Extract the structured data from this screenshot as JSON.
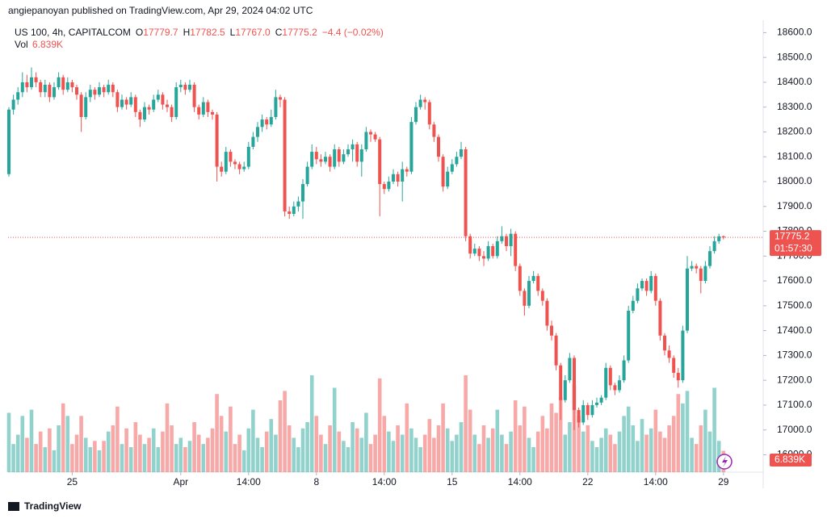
{
  "header": {
    "publisher": "angiepanoyan published on TradingView.com, Apr 29, 2024 04:02 UTC",
    "symbol": "US 100, 4h, CAPITALCOM",
    "open_key": "O",
    "open": "17779.7",
    "high_key": "H",
    "high": "17782.5",
    "low_key": "L",
    "low": "17767.0",
    "close_key": "C",
    "close": "17775.2",
    "change": "−4.4 (−0.02%)",
    "vol_key": "Vol"
  },
  "footer": {
    "brand": "TradingView"
  },
  "chart_data": {
    "type": "candlestick",
    "up_color": "#26a69a",
    "down_color": "#ef5350",
    "volume_label": "6.839K",
    "countdown": "01:57:30",
    "ylim": [
      16830,
      18650
    ],
    "yticks": [
      {
        "value": 16900,
        "label": "16900.0"
      },
      {
        "value": 17000,
        "label": "17000.0"
      },
      {
        "value": 17100,
        "label": "17100.0"
      },
      {
        "value": 17200,
        "label": "17200.0"
      },
      {
        "value": 17300,
        "label": "17300.0"
      },
      {
        "value": 17400,
        "label": "17400.0"
      },
      {
        "value": 17500,
        "label": "17500.0"
      },
      {
        "value": 17600,
        "label": "17600.0"
      },
      {
        "value": 17700,
        "label": "17700.0"
      },
      {
        "value": 17800,
        "label": "17800.0"
      },
      {
        "value": 17900,
        "label": "17900.0"
      },
      {
        "value": 18000,
        "label": "18000.0"
      },
      {
        "value": 18100,
        "label": "18100.0"
      },
      {
        "value": 18200,
        "label": "18200.0"
      },
      {
        "value": 18300,
        "label": "18300.0"
      },
      {
        "value": 18400,
        "label": "18400.0"
      },
      {
        "value": 18500,
        "label": "18500.0"
      },
      {
        "value": 18600,
        "label": "18600.0"
      }
    ],
    "xticks": [
      {
        "value": 14,
        "label": "25"
      },
      {
        "value": 38,
        "label": "Apr"
      },
      {
        "value": 53,
        "label": "14:00"
      },
      {
        "value": 68,
        "label": "8"
      },
      {
        "value": 83,
        "label": "14:00"
      },
      {
        "value": 98,
        "label": "15"
      },
      {
        "value": 113,
        "label": "14:00"
      },
      {
        "value": 128,
        "label": "22"
      },
      {
        "value": 143,
        "label": "14:00"
      },
      {
        "value": 158,
        "label": "29"
      }
    ],
    "candles": [
      [
        18030,
        18300,
        18020,
        18290,
        19
      ],
      [
        18290,
        18350,
        18270,
        18330,
        9
      ],
      [
        18330,
        18380,
        18310,
        18360,
        12
      ],
      [
        18360,
        18440,
        18340,
        18400,
        18
      ],
      [
        18400,
        18430,
        18360,
        18380,
        11
      ],
      [
        18380,
        18460,
        18370,
        18420,
        20
      ],
      [
        18420,
        18440,
        18380,
        18400,
        9
      ],
      [
        18400,
        18410,
        18340,
        18360,
        13
      ],
      [
        18360,
        18410,
        18340,
        18390,
        8
      ],
      [
        18390,
        18400,
        18320,
        18340,
        14
      ],
      [
        18340,
        18400,
        18330,
        18380,
        7
      ],
      [
        18380,
        18440,
        18370,
        18420,
        15
      ],
      [
        18420,
        18430,
        18350,
        18370,
        22
      ],
      [
        18370,
        18420,
        18360,
        18400,
        18
      ],
      [
        18400,
        18410,
        18360,
        18380,
        9
      ],
      [
        18380,
        18390,
        18330,
        18350,
        12
      ],
      [
        18350,
        18360,
        18200,
        18260,
        18
      ],
      [
        18260,
        18360,
        18250,
        18340,
        11
      ],
      [
        18340,
        18390,
        18320,
        18370,
        8
      ],
      [
        18370,
        18380,
        18330,
        18350,
        10
      ],
      [
        18350,
        18400,
        18340,
        18380,
        7
      ],
      [
        18380,
        18390,
        18340,
        18360,
        10
      ],
      [
        18360,
        18410,
        18350,
        18390,
        13
      ],
      [
        18390,
        18400,
        18340,
        18360,
        15
      ],
      [
        18360,
        18370,
        18280,
        18300,
        21
      ],
      [
        18300,
        18350,
        18290,
        18330,
        9
      ],
      [
        18330,
        18340,
        18290,
        18310,
        14
      ],
      [
        18310,
        18360,
        18300,
        18340,
        8
      ],
      [
        18340,
        18350,
        18260,
        18280,
        16
      ],
      [
        18280,
        18290,
        18220,
        18250,
        12
      ],
      [
        18250,
        18320,
        18240,
        18300,
        9
      ],
      [
        18300,
        18310,
        18270,
        18290,
        11
      ],
      [
        18290,
        18350,
        18280,
        18330,
        14
      ],
      [
        18330,
        18370,
        18320,
        18350,
        8
      ],
      [
        18350,
        18360,
        18290,
        18310,
        13
      ],
      [
        18310,
        18330,
        18280,
        18300,
        22
      ],
      [
        18300,
        18310,
        18240,
        18260,
        15
      ],
      [
        18260,
        18400,
        18250,
        18380,
        9
      ],
      [
        18380,
        18410,
        18360,
        18390,
        11
      ],
      [
        18390,
        18400,
        18350,
        18370,
        8
      ],
      [
        18370,
        18410,
        18360,
        18390,
        10
      ],
      [
        18390,
        18400,
        18280,
        18300,
        16
      ],
      [
        18300,
        18310,
        18250,
        18270,
        12
      ],
      [
        18270,
        18340,
        18260,
        18320,
        9
      ],
      [
        18320,
        18330,
        18260,
        18280,
        11
      ],
      [
        18280,
        18290,
        18250,
        18270,
        14
      ],
      [
        18270,
        18280,
        18000,
        18060,
        25
      ],
      [
        18060,
        18080,
        18020,
        18040,
        18
      ],
      [
        18040,
        18140,
        18030,
        18120,
        13
      ],
      [
        18120,
        18130,
        18060,
        18080,
        21
      ],
      [
        18080,
        18090,
        18050,
        18070,
        9
      ],
      [
        18070,
        18080,
        18030,
        18050,
        12
      ],
      [
        18050,
        18080,
        18040,
        18060,
        7
      ],
      [
        18060,
        18160,
        18050,
        18140,
        14
      ],
      [
        18140,
        18200,
        18130,
        18180,
        20
      ],
      [
        18180,
        18240,
        18160,
        18220,
        11
      ],
      [
        18220,
        18270,
        18200,
        18250,
        8
      ],
      [
        18250,
        18260,
        18210,
        18230,
        13
      ],
      [
        18230,
        18290,
        18220,
        18260,
        17
      ],
      [
        18260,
        18370,
        18250,
        18340,
        12
      ],
      [
        18340,
        18350,
        18300,
        18330,
        23
      ],
      [
        18330,
        18340,
        17860,
        17880,
        26
      ],
      [
        17880,
        17900,
        17850,
        17870,
        15
      ],
      [
        17870,
        17920,
        17860,
        17900,
        11
      ],
      [
        17900,
        17940,
        17880,
        17920,
        8
      ],
      [
        17920,
        18010,
        17850,
        17990,
        14
      ],
      [
        17990,
        18080,
        17980,
        18060,
        16
      ],
      [
        18060,
        18150,
        18050,
        18120,
        31
      ],
      [
        18120,
        18140,
        18070,
        18090,
        18
      ],
      [
        18090,
        18110,
        18060,
        18080,
        12
      ],
      [
        18080,
        18120,
        18070,
        18100,
        9
      ],
      [
        18100,
        18110,
        18040,
        18060,
        15
      ],
      [
        18060,
        18150,
        18050,
        18130,
        27
      ],
      [
        18130,
        18140,
        18060,
        18080,
        13
      ],
      [
        18080,
        18130,
        18070,
        18110,
        10
      ],
      [
        18110,
        18150,
        18100,
        18130,
        8
      ],
      [
        18130,
        18170,
        18080,
        18150,
        16
      ],
      [
        18150,
        18160,
        18060,
        18080,
        14
      ],
      [
        18080,
        18150,
        18020,
        18130,
        11
      ],
      [
        18130,
        18220,
        18120,
        18200,
        19
      ],
      [
        18200,
        18210,
        18160,
        18190,
        9
      ],
      [
        18190,
        18200,
        18160,
        18170,
        12
      ],
      [
        18170,
        18180,
        17860,
        17990,
        30
      ],
      [
        17990,
        18000,
        17950,
        17970,
        18
      ],
      [
        17970,
        18020,
        17960,
        18000,
        13
      ],
      [
        18000,
        18050,
        17990,
        18030,
        10
      ],
      [
        18030,
        18040,
        17980,
        18000,
        15
      ],
      [
        18000,
        18080,
        17920,
        18050,
        12
      ],
      [
        18050,
        18060,
        18020,
        18040,
        22
      ],
      [
        18040,
        18260,
        18030,
        18240,
        14
      ],
      [
        18240,
        18320,
        18230,
        18300,
        11
      ],
      [
        18300,
        18350,
        18290,
        18330,
        8
      ],
      [
        18330,
        18340,
        18290,
        18320,
        12
      ],
      [
        18320,
        18330,
        18210,
        18230,
        17
      ],
      [
        18230,
        18240,
        18160,
        18180,
        11
      ],
      [
        18180,
        18190,
        18080,
        18100,
        15
      ],
      [
        18100,
        18110,
        17960,
        17980,
        22
      ],
      [
        17980,
        18060,
        17970,
        18040,
        14
      ],
      [
        18040,
        18090,
        18030,
        18070,
        10
      ],
      [
        18070,
        18120,
        18060,
        18100,
        12
      ],
      [
        18100,
        18160,
        18090,
        18130,
        16
      ],
      [
        18130,
        18140,
        17760,
        17780,
        31
      ],
      [
        17780,
        17790,
        17690,
        17710,
        20
      ],
      [
        17710,
        17750,
        17700,
        17730,
        12
      ],
      [
        17730,
        17740,
        17680,
        17700,
        9
      ],
      [
        17700,
        17720,
        17660,
        17690,
        15
      ],
      [
        17690,
        17760,
        17680,
        17740,
        11
      ],
      [
        17740,
        17750,
        17690,
        17700,
        14
      ],
      [
        17700,
        17780,
        17690,
        17760,
        20
      ],
      [
        17760,
        17820,
        17750,
        17780,
        12
      ],
      [
        17780,
        17790,
        17720,
        17740,
        9
      ],
      [
        17740,
        17810,
        17700,
        17790,
        13
      ],
      [
        17790,
        17800,
        17640,
        17660,
        23
      ],
      [
        17660,
        17670,
        17540,
        17560,
        15
      ],
      [
        17560,
        17570,
        17460,
        17500,
        21
      ],
      [
        17500,
        17620,
        17490,
        17600,
        11
      ],
      [
        17600,
        17640,
        17590,
        17620,
        8
      ],
      [
        17620,
        17630,
        17540,
        17560,
        13
      ],
      [
        17560,
        17570,
        17500,
        17520,
        18
      ],
      [
        17520,
        17530,
        17400,
        17420,
        14
      ],
      [
        17420,
        17440,
        17360,
        17380,
        22
      ],
      [
        17380,
        17390,
        17240,
        17260,
        19
      ],
      [
        17260,
        17270,
        17040,
        17120,
        24
      ],
      [
        17120,
        17220,
        17110,
        17200,
        12
      ],
      [
        17200,
        17310,
        17190,
        17290,
        16
      ],
      [
        17290,
        17300,
        17000,
        17080,
        28
      ],
      [
        17080,
        17090,
        17010,
        17030,
        18
      ],
      [
        17030,
        17120,
        17020,
        17100,
        13
      ],
      [
        17100,
        17110,
        17040,
        17060,
        15
      ],
      [
        17060,
        17120,
        17050,
        17100,
        10
      ],
      [
        17100,
        17130,
        17090,
        17110,
        8
      ],
      [
        17110,
        17140,
        17100,
        17130,
        11
      ],
      [
        17130,
        17270,
        17120,
        17250,
        14
      ],
      [
        17250,
        17260,
        17160,
        17180,
        12
      ],
      [
        17180,
        17190,
        17140,
        17160,
        9
      ],
      [
        17160,
        17220,
        17150,
        17200,
        13
      ],
      [
        17200,
        17300,
        17190,
        17280,
        18
      ],
      [
        17280,
        17500,
        17270,
        17480,
        21
      ],
      [
        17480,
        17540,
        17470,
        17520,
        15
      ],
      [
        17520,
        17590,
        17510,
        17570,
        10
      ],
      [
        17570,
        17610,
        17560,
        17600,
        17
      ],
      [
        17600,
        17610,
        17540,
        17560,
        12
      ],
      [
        17560,
        17640,
        17550,
        17620,
        14
      ],
      [
        17620,
        17630,
        17500,
        17520,
        20
      ],
      [
        17520,
        17530,
        17360,
        17380,
        13
      ],
      [
        17380,
        17390,
        17300,
        17320,
        11
      ],
      [
        17320,
        17340,
        17270,
        17290,
        15
      ],
      [
        17290,
        17300,
        17210,
        17230,
        18
      ],
      [
        17230,
        17250,
        17170,
        17200,
        25
      ],
      [
        17200,
        17420,
        17190,
        17400,
        22
      ],
      [
        17400,
        17700,
        17390,
        17650,
        26
      ],
      [
        17650,
        17680,
        17640,
        17660,
        11
      ],
      [
        17660,
        17670,
        17630,
        17650,
        9
      ],
      [
        17650,
        17660,
        17550,
        17600,
        15
      ],
      [
        17600,
        17680,
        17590,
        17660,
        20
      ],
      [
        17660,
        17740,
        17650,
        17720,
        13
      ],
      [
        17720,
        17780,
        17710,
        17760,
        27
      ],
      [
        17760,
        17790,
        17750,
        17779.7,
        10
      ],
      [
        17779.7,
        17782.5,
        17767.0,
        17775.2,
        6.839
      ]
    ]
  }
}
